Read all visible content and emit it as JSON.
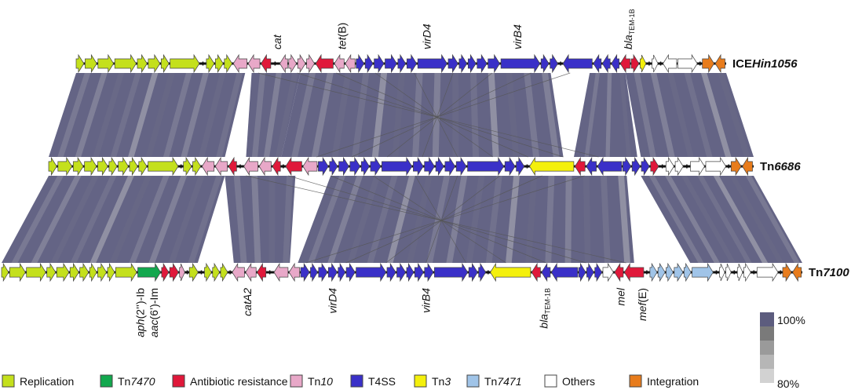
{
  "colors": {
    "Replication": "#c4e01c",
    "Tn7470": "#12a84e",
    "Antibiotic resistance": "#e0183a",
    "Tn10": "#e8a8c8",
    "T4SS": "#3a30c8",
    "Tn3": "#f4f00c",
    "Tn7471": "#a0c4e8",
    "Others": "#ffffff",
    "Integration": "#e87c1c",
    "identity_high": "#5c5c7e",
    "identity_low": "#c8c8c8"
  },
  "tracks": [
    {
      "name": "ICEHin1056",
      "name_parts": [
        {
          "t": "ICE",
          "i": false
        },
        {
          "t": "Hin1056",
          "i": true
        }
      ],
      "start": 97,
      "end": 925,
      "genes": [
        [
          "Replication",
          8,
          1
        ],
        [
          "Replication",
          12,
          1
        ],
        [
          "Replication",
          16,
          1
        ],
        [
          "Replication",
          22,
          1
        ],
        [
          "Replication",
          10,
          1
        ],
        [
          "Replication",
          12,
          1
        ],
        [
          "Replication",
          8,
          1
        ],
        [
          "Replication",
          30,
          1
        ],
        [
          "gap",
          6
        ],
        [
          "Replication",
          8,
          1
        ],
        [
          "Replication",
          8,
          1
        ],
        [
          "Replication",
          8,
          1
        ],
        [
          "Tn10",
          14,
          -1
        ],
        [
          "Tn10",
          12,
          -1
        ],
        [
          "Antibiotic resistance",
          10,
          -1
        ],
        [
          "gap",
          8
        ],
        [
          "Tn10",
          8,
          -1
        ],
        [
          "Tn10",
          8,
          1
        ],
        [
          "Tn10",
          8,
          1
        ],
        [
          "Tn10",
          8,
          1
        ],
        [
          "Antibiotic resistance",
          18,
          -1
        ],
        [
          "Tn10",
          10,
          -1
        ],
        [
          "Tn10",
          10,
          -1
        ],
        [
          "T4SS",
          8,
          1
        ],
        [
          "T4SS",
          8,
          1
        ],
        [
          "T4SS",
          10,
          1
        ],
        [
          "T4SS",
          12,
          1
        ],
        [
          "T4SS",
          8,
          1
        ],
        [
          "T4SS",
          10,
          1
        ],
        [
          "T4SS",
          30,
          1
        ],
        [
          "T4SS",
          10,
          1
        ],
        [
          "T4SS",
          8,
          1
        ],
        [
          "T4SS",
          8,
          1
        ],
        [
          "T4SS",
          10,
          1
        ],
        [
          "T4SS",
          12,
          1
        ],
        [
          "T4SS",
          40,
          1
        ],
        [
          "T4SS",
          8,
          1
        ],
        [
          "T4SS",
          8,
          1
        ],
        [
          "gap",
          4
        ],
        [
          "T4SS",
          30,
          -1
        ],
        [
          "T4SS",
          8,
          -1
        ],
        [
          "T4SS",
          8,
          -1
        ],
        [
          "T4SS",
          8,
          -1
        ],
        [
          "Antibiotic resistance",
          10,
          -1
        ],
        [
          "Antibiotic resistance",
          8,
          1
        ],
        [
          "Tn3",
          6,
          1
        ],
        [
          "gap",
          5
        ],
        [
          "Others",
          6,
          1
        ],
        [
          "gap",
          4
        ],
        [
          "Others",
          14,
          -1
        ],
        [
          "Others",
          20,
          1
        ],
        [
          "gap",
          4
        ],
        [
          "Integration",
          12,
          1
        ],
        [
          "Integration",
          10,
          -1
        ]
      ]
    },
    {
      "name": "Tn6686",
      "name_parts": [
        {
          "t": "Tn",
          "i": false
        },
        {
          "t": "6686",
          "i": true
        }
      ],
      "start": 62,
      "end": 960,
      "genes": [
        [
          "Replication",
          8,
          1
        ],
        [
          "Replication",
          14,
          1
        ],
        [
          "Replication",
          10,
          1
        ],
        [
          "Replication",
          12,
          1
        ],
        [
          "Replication",
          10,
          1
        ],
        [
          "Replication",
          8,
          1
        ],
        [
          "Replication",
          10,
          1
        ],
        [
          "Replication",
          8,
          1
        ],
        [
          "Replication",
          8,
          1
        ],
        [
          "Replication",
          30,
          1
        ],
        [
          "gap",
          4
        ],
        [
          "Replication",
          8,
          1
        ],
        [
          "Replication",
          8,
          1
        ],
        [
          "Tn10",
          12,
          -1
        ],
        [
          "Tn10",
          12,
          -1
        ],
        [
          "Antibiotic resistance",
          8,
          -1
        ],
        [
          "gap",
          6
        ],
        [
          "Tn10",
          14,
          -1
        ],
        [
          "Tn10",
          12,
          -1
        ],
        [
          "Antibiotic resistance",
          8,
          -1
        ],
        [
          "gap",
          4
        ],
        [
          "Antibiotic resistance",
          16,
          -1
        ],
        [
          "Tn10",
          14,
          -1
        ],
        [
          "T4SS",
          10,
          1
        ],
        [
          "T4SS",
          8,
          1
        ],
        [
          "T4SS",
          10,
          1
        ],
        [
          "T4SS",
          10,
          1
        ],
        [
          "T4SS",
          8,
          1
        ],
        [
          "T4SS",
          10,
          1
        ],
        [
          "T4SS",
          30,
          1
        ],
        [
          "T4SS",
          10,
          1
        ],
        [
          "T4SS",
          10,
          1
        ],
        [
          "T4SS",
          8,
          1
        ],
        [
          "T4SS",
          10,
          1
        ],
        [
          "T4SS",
          10,
          1
        ],
        [
          "T4SS",
          36,
          1
        ],
        [
          "T4SS",
          10,
          1
        ],
        [
          "T4SS",
          8,
          1
        ],
        [
          "gap",
          4
        ],
        [
          "Tn3",
          44,
          -1
        ],
        [
          "Antibiotic resistance",
          10,
          -1
        ],
        [
          "T4SS",
          10,
          -1
        ],
        [
          "T4SS",
          24,
          -1
        ],
        [
          "T4SS",
          8,
          1
        ],
        [
          "T4SS",
          8,
          1
        ],
        [
          "T4SS",
          8,
          1
        ],
        [
          "Antibiotic resistance",
          8,
          1
        ],
        [
          "gap",
          6
        ],
        [
          "Others",
          8,
          1
        ],
        [
          "Others",
          8,
          1
        ],
        [
          "gap",
          6
        ],
        [
          "Others",
          14,
          1
        ],
        [
          "Others",
          20,
          1
        ],
        [
          "gap",
          4
        ],
        [
          "Integration",
          10,
          1
        ],
        [
          "Integration",
          10,
          -1
        ]
      ]
    },
    {
      "name": "Tn7100",
      "name_parts": [
        {
          "t": "Tn",
          "i": false
        },
        {
          "t": "7100",
          "i": true
        }
      ],
      "start": 2,
      "end": 1022,
      "genes": [
        [
          "Replication",
          8,
          1
        ],
        [
          "Replication",
          18,
          1
        ],
        [
          "Replication",
          22,
          1
        ],
        [
          "Replication",
          10,
          1
        ],
        [
          "Replication",
          14,
          1
        ],
        [
          "Replication",
          10,
          1
        ],
        [
          "Replication",
          10,
          1
        ],
        [
          "Replication",
          8,
          1
        ],
        [
          "Replication",
          10,
          1
        ],
        [
          "Replication",
          8,
          1
        ],
        [
          "Replication",
          24,
          1
        ],
        [
          "Tn7470",
          26,
          1
        ],
        [
          "Antibiotic resistance",
          8,
          1
        ],
        [
          "Antibiotic resistance",
          10,
          1
        ],
        [
          "Tn10",
          6,
          1
        ],
        [
          "gap",
          4
        ],
        [
          "Replication",
          10,
          1
        ],
        [
          "gap",
          6
        ],
        [
          "Replication",
          8,
          1
        ],
        [
          "Replication",
          8,
          1
        ],
        [
          "Replication",
          8,
          1
        ],
        [
          "gap",
          4
        ],
        [
          "Tn10",
          14,
          -1
        ],
        [
          "Tn10",
          12,
          -1
        ],
        [
          "Antibiotic resistance",
          10,
          -1
        ],
        [
          "gap",
          8
        ],
        [
          "Tn10",
          16,
          -1
        ],
        [
          "Tn10",
          12,
          -1
        ],
        [
          "T4SS",
          10,
          1
        ],
        [
          "T4SS",
          8,
          1
        ],
        [
          "T4SS",
          10,
          1
        ],
        [
          "T4SS",
          10,
          1
        ],
        [
          "T4SS",
          8,
          1
        ],
        [
          "T4SS",
          10,
          1
        ],
        [
          "T4SS",
          34,
          1
        ],
        [
          "T4SS",
          10,
          1
        ],
        [
          "T4SS",
          10,
          1
        ],
        [
          "T4SS",
          8,
          1
        ],
        [
          "T4SS",
          10,
          1
        ],
        [
          "T4SS",
          10,
          1
        ],
        [
          "T4SS",
          38,
          1
        ],
        [
          "T4SS",
          10,
          1
        ],
        [
          "T4SS",
          8,
          1
        ],
        [
          "gap",
          4
        ],
        [
          "Tn3",
          46,
          -1
        ],
        [
          "Antibiotic resistance",
          10,
          -1
        ],
        [
          "T4SS",
          10,
          -1
        ],
        [
          "T4SS",
          30,
          -1
        ],
        [
          "T4SS",
          8,
          1
        ],
        [
          "T4SS",
          8,
          1
        ],
        [
          "T4SS",
          8,
          1
        ],
        [
          "Others",
          12,
          1
        ],
        [
          "Antibiotic resistance",
          10,
          -1
        ],
        [
          "Antibiotic resistance",
          22,
          -1
        ],
        [
          "gap",
          6
        ],
        [
          "Tn7471",
          8,
          1
        ],
        [
          "Tn7471",
          8,
          1
        ],
        [
          "Tn7471",
          8,
          1
        ],
        [
          "Tn7471",
          10,
          1
        ],
        [
          "Tn7471",
          8,
          1
        ],
        [
          "Tn7471",
          24,
          1
        ],
        [
          "gap",
          6
        ],
        [
          "Others",
          6,
          1
        ],
        [
          "Others",
          6,
          1
        ],
        [
          "gap",
          6
        ],
        [
          "Others",
          6,
          1
        ],
        [
          "Others",
          8,
          1
        ],
        [
          "gap",
          6
        ],
        [
          "Others",
          24,
          1
        ],
        [
          "gap",
          4
        ],
        [
          "Integration",
          10,
          1
        ],
        [
          "Integration",
          10,
          -1
        ]
      ]
    }
  ],
  "gene_labels": [
    {
      "parts": [
        {
          "t": "cat",
          "i": true
        }
      ],
      "track": 0,
      "side": "above",
      "rel": 0.315
    },
    {
      "parts": [
        {
          "t": "tet",
          "i": true
        },
        {
          "t": "(B)",
          "i": false
        }
      ],
      "track": 0,
      "side": "above",
      "rel": 0.415
    },
    {
      "parts": [
        {
          "t": "virD4",
          "i": true
        }
      ],
      "track": 0,
      "side": "above",
      "rel": 0.545
    },
    {
      "parts": [
        {
          "t": "virB4",
          "i": true
        }
      ],
      "track": 0,
      "side": "above",
      "rel": 0.685
    },
    {
      "parts": [
        {
          "t": "bla",
          "i": true
        },
        {
          "t": "TEM-1B",
          "i": false,
          "sub": true
        }
      ],
      "track": 0,
      "side": "above",
      "rel": 0.855
    },
    {
      "parts": [
        {
          "t": "aph",
          "i": true
        },
        {
          "t": "(2’’)-Ib",
          "i": false
        }
      ],
      "track": 2,
      "side": "below",
      "rel": 0.178
    },
    {
      "parts": [
        {
          "t": "aac",
          "i": true
        },
        {
          "t": "(6’)-Im",
          "i": false
        }
      ],
      "track": 2,
      "side": "below",
      "rel": 0.195
    },
    {
      "parts": [
        {
          "t": "catA2",
          "i": true
        }
      ],
      "track": 2,
      "side": "below",
      "rel": 0.312
    },
    {
      "parts": [
        {
          "t": "virD4",
          "i": true
        }
      ],
      "track": 2,
      "side": "below",
      "rel": 0.418
    },
    {
      "parts": [
        {
          "t": "virB4",
          "i": true
        }
      ],
      "track": 2,
      "side": "below",
      "rel": 0.535
    },
    {
      "parts": [
        {
          "t": "bla",
          "i": true
        },
        {
          "t": "TEM-1B",
          "i": false,
          "sub": true
        }
      ],
      "track": 2,
      "side": "below",
      "rel": 0.682
    },
    {
      "parts": [
        {
          "t": "mel",
          "i": true
        }
      ],
      "track": 2,
      "side": "below",
      "rel": 0.778
    },
    {
      "parts": [
        {
          "t": "mef",
          "i": true
        },
        {
          "t": "(E)",
          "i": false
        }
      ],
      "track": 2,
      "side": "below",
      "rel": 0.805
    }
  ],
  "synteny": [
    {
      "pair": [
        0,
        1
      ],
      "blocks": [
        [
          0.0,
          0.26,
          0.0,
          0.25
        ],
        [
          0.27,
          0.345,
          0.28,
          0.33
        ],
        [
          0.345,
          0.73,
          0.33,
          0.73
        ],
        [
          0.79,
          0.845,
          0.745,
          0.835
        ],
        [
          0.845,
          1.0,
          0.84,
          1.0
        ]
      ]
    },
    {
      "pair": [
        1,
        2
      ],
      "blocks": [
        [
          0.0,
          0.25,
          0.0,
          0.245
        ],
        [
          0.25,
          0.35,
          0.29,
          0.36
        ],
        [
          0.4,
          0.82,
          0.37,
          0.79
        ],
        [
          0.84,
          1.0,
          0.86,
          1.0
        ]
      ]
    }
  ],
  "legend": [
    {
      "label": "Replication",
      "label_parts": [
        {
          "t": "Replication",
          "i": false
        }
      ]
    },
    {
      "label": "Tn7470",
      "label_parts": [
        {
          "t": "Tn",
          "i": false
        },
        {
          "t": "7470",
          "i": true
        }
      ]
    },
    {
      "label": "Antibiotic resistance",
      "label_parts": [
        {
          "t": "Antibiotic resistance",
          "i": false
        }
      ]
    },
    {
      "label": "Tn10",
      "label_parts": [
        {
          "t": "Tn",
          "i": false
        },
        {
          "t": "10",
          "i": true
        }
      ]
    },
    {
      "label": "T4SS",
      "label_parts": [
        {
          "t": "T4SS",
          "i": false
        }
      ]
    },
    {
      "label": "Tn3",
      "label_parts": [
        {
          "t": "Tn",
          "i": false
        },
        {
          "t": "3",
          "i": true
        }
      ]
    },
    {
      "label": "Tn7471",
      "label_parts": [
        {
          "t": "Tn",
          "i": false
        },
        {
          "t": "7471",
          "i": true
        }
      ]
    },
    {
      "label": "Others",
      "label_parts": [
        {
          "t": "Others",
          "i": false
        }
      ]
    },
    {
      "label": "Integration",
      "label_parts": [
        {
          "t": "Integration",
          "i": false
        }
      ]
    }
  ],
  "scale": {
    "max_label": "100%",
    "min_label": "80%"
  }
}
